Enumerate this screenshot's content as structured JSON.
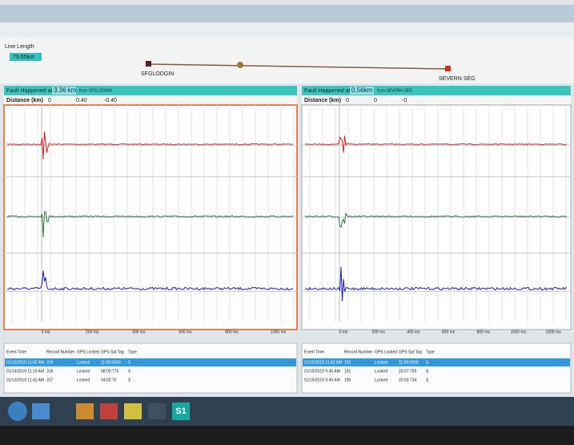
{
  "line_length": {
    "label": "Line Length",
    "value": "79.65km",
    "left_station": "SFGLODGIN",
    "right_station": "SEVERN SEG"
  },
  "panels": [
    {
      "header": "Fault Happened at",
      "distance": "3.36 km",
      "from": "from SFGLODGIN",
      "distance_label": "Distance (km)",
      "readings": [
        "0",
        "0.40",
        "-0.40"
      ],
      "time_ticks": [
        "0 ms",
        "200 ms",
        "400 ms",
        "600 ms",
        "800 ms",
        "1000 ms"
      ],
      "table": {
        "columns": [
          "Event Time",
          "Record Number",
          "GPS Locked",
          "GPS Sat Tag",
          "Type"
        ],
        "rows": [
          [
            "01/15/2019 11:42 AM",
            "319",
            "Locked",
            "11:00:0000",
            "S"
          ],
          [
            "01/14/2019 11:19 AM",
            "318",
            "Locked",
            "08:00:775",
            "S"
          ],
          [
            "01/13/2019 11:42 AM",
            "317",
            "Locked",
            "04:02:70",
            "S"
          ]
        ]
      }
    },
    {
      "header": "Fault Happened at",
      "distance": "0.56km",
      "from": "from SEVERN SEG",
      "distance_label": "Distance (km)",
      "readings": [
        "0",
        "0",
        "-0"
      ],
      "time_ticks": [
        "0 ms",
        "200 ms",
        "400 ms",
        "600 ms",
        "800 ms",
        "1000 ms",
        "1200 ms"
      ],
      "table": {
        "columns": [
          "Event Time",
          "Record Number",
          "GPS Locked",
          "GPS Sat Tag",
          "Type"
        ],
        "rows": [
          [
            "01/15/2019 11:42 AM",
            "192",
            "Locked",
            "11:00:0000",
            "S"
          ],
          [
            "01/15/2019 9:45 AM",
            "191",
            "Locked",
            "20:07:759",
            "S"
          ],
          [
            "01/15/2019 9:45 AM",
            "190",
            "Locked",
            "20:03:734",
            "S"
          ]
        ]
      }
    }
  ],
  "taskbar": {
    "app": "S1"
  }
}
